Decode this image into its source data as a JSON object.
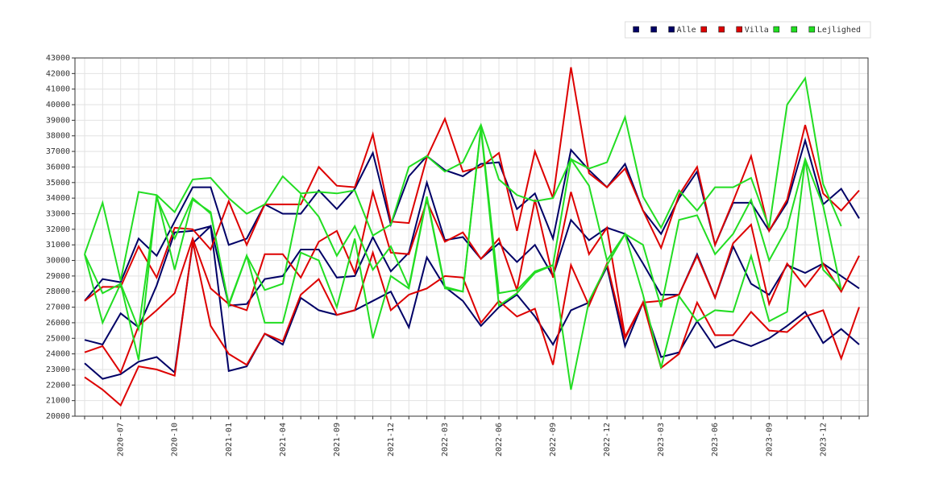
{
  "chart_data": {
    "type": "line",
    "categories": [
      null,
      null,
      "2020-07",
      null,
      null,
      "2020-10",
      null,
      null,
      "2021-01",
      null,
      null,
      "2021-04",
      null,
      null,
      "2021-09",
      null,
      null,
      "2021-12",
      null,
      null,
      "2022-03",
      null,
      null,
      "2022-06",
      null,
      null,
      "2022-09",
      null,
      null,
      "2022-12",
      null,
      null,
      "2023-03",
      null,
      null,
      "2023-06",
      null,
      null,
      "2023-09",
      null,
      null,
      "2023-12",
      null,
      null
    ],
    "series": [
      {
        "color": "#000066",
        "values": [
          27400,
          28800,
          28600,
          31400,
          30300,
          32500,
          34700,
          34700,
          31000,
          31400,
          33600,
          33000,
          33000,
          34500,
          33300,
          34600,
          36900,
          32300,
          35400,
          36700,
          35800,
          35400,
          36200,
          36300,
          33300,
          34300,
          31400,
          37100,
          35800,
          34700,
          36200,
          33200,
          31700,
          34000,
          35700,
          31000,
          33700,
          33700,
          31900,
          33700,
          37700,
          33600,
          34600,
          32700
        ]
      },
      {
        "color": "#000066",
        "values": [
          24900,
          24600,
          26600,
          25700,
          28400,
          31800,
          31900,
          32200,
          27100,
          27200,
          28800,
          29000,
          30700,
          30700,
          28900,
          29000,
          31500,
          29300,
          30500,
          35000,
          31300,
          31500,
          30100,
          31100,
          29900,
          31000,
          29000,
          32600,
          31300,
          32100,
          31700,
          29800,
          27800,
          27800,
          30400,
          27600,
          30900,
          28500,
          27800,
          29700,
          29200,
          29800,
          29000,
          28200
        ]
      },
      {
        "name": "Alle",
        "color": "#000066",
        "values": [
          23400,
          22400,
          22700,
          23500,
          23800,
          22800,
          31100,
          32200,
          22900,
          23200,
          25300,
          24600,
          27600,
          26800,
          26500,
          26800,
          27400,
          28000,
          25700,
          30200,
          28300,
          27400,
          25800,
          27000,
          27800,
          26400,
          24600,
          26800,
          27300,
          29600,
          24500,
          27300,
          23800,
          24100,
          26100,
          24400,
          24900,
          24500,
          25000,
          25800,
          26700,
          24700,
          25600,
          24600
        ]
      },
      {
        "color": "#dd0000",
        "values": [
          27400,
          28300,
          28300,
          30900,
          28900,
          32100,
          32000,
          30700,
          33800,
          31000,
          33600,
          33600,
          33600,
          36000,
          34800,
          34700,
          38100,
          32500,
          32400,
          36600,
          39100,
          35700,
          36000,
          36900,
          31900,
          37000,
          34000,
          42400,
          35600,
          34700,
          35900,
          33200,
          30800,
          34200,
          36000,
          31000,
          33800,
          36700,
          31900,
          33900,
          38700,
          34300,
          33200,
          34500
        ]
      },
      {
        "color": "#dd0000",
        "values": [
          24100,
          24500,
          22800,
          25800,
          26800,
          27900,
          31400,
          28200,
          27200,
          26800,
          30400,
          30400,
          28900,
          31200,
          31900,
          29200,
          34400,
          30500,
          30400,
          33800,
          31200,
          31800,
          30100,
          31400,
          28100,
          33900,
          28900,
          34400,
          30400,
          32100,
          25100,
          27300,
          27400,
          27800,
          30300,
          27600,
          31100,
          32300,
          27200,
          29800,
          28300,
          29800,
          28000,
          30300
        ]
      },
      {
        "name": "Villa",
        "color": "#dd0000",
        "values": [
          22500,
          21700,
          20700,
          23200,
          23000,
          22600,
          31200,
          25800,
          24000,
          23300,
          25300,
          24800,
          27800,
          28800,
          26500,
          26800,
          30500,
          26800,
          27800,
          28200,
          29000,
          28900,
          26000,
          27400,
          26400,
          26900,
          23300,
          29700,
          27100,
          29800,
          25000,
          27300,
          23100,
          24000,
          27300,
          25200,
          25200,
          26700,
          25500,
          25400,
          26400,
          26800,
          23700,
          27000
        ]
      },
      {
        "color": "#22dd22",
        "values": [
          30400,
          33700,
          28700,
          34400,
          34200,
          33100,
          35200,
          35300,
          34000,
          33000,
          33600,
          35400,
          34300,
          34400,
          34300,
          34500,
          31600,
          32300,
          36000,
          36700,
          35700,
          36300,
          38700,
          35200,
          34200,
          33800,
          34000,
          36500,
          35900,
          36300,
          39200,
          34100,
          32100,
          34500,
          33200,
          34700,
          34700,
          35300,
          32100,
          40000,
          41700,
          34900,
          32200,
          null
        ]
      },
      {
        "color": "#22dd22",
        "values": [
          30400,
          27900,
          28500,
          23600,
          34200,
          29400,
          33900,
          33100,
          27100,
          30300,
          28100,
          28500,
          34200,
          32800,
          30300,
          32200,
          29400,
          30900,
          28300,
          34100,
          28300,
          28000,
          38600,
          27900,
          28100,
          29300,
          29700,
          36500,
          34800,
          30000,
          31700,
          31000,
          27000,
          32600,
          32900,
          30400,
          31700,
          33900,
          30000,
          32100,
          36500,
          33500,
          28100,
          null
        ]
      },
      {
        "name": "Lejlighed",
        "color": "#22dd22",
        "values": [
          30400,
          26000,
          28500,
          25600,
          34000,
          31400,
          34000,
          33000,
          27200,
          30300,
          26000,
          26000,
          30500,
          30000,
          27000,
          31400,
          25000,
          29000,
          28200,
          34000,
          28200,
          28000,
          38500,
          27100,
          27900,
          29200,
          29700,
          21700,
          27400,
          29700,
          31700,
          27800,
          23100,
          27700,
          26100,
          26800,
          26700,
          30300,
          26100,
          26700,
          36500,
          29400,
          28200,
          null
        ]
      }
    ],
    "ylim": [
      20000,
      43000
    ],
    "yticks": [
      20000,
      21000,
      22000,
      23000,
      24000,
      25000,
      26000,
      27000,
      28000,
      29000,
      30000,
      31000,
      32000,
      33000,
      34000,
      35000,
      36000,
      37000,
      38000,
      39000,
      40000,
      41000,
      42000,
      43000
    ],
    "grid": true,
    "legend": "top-right"
  }
}
